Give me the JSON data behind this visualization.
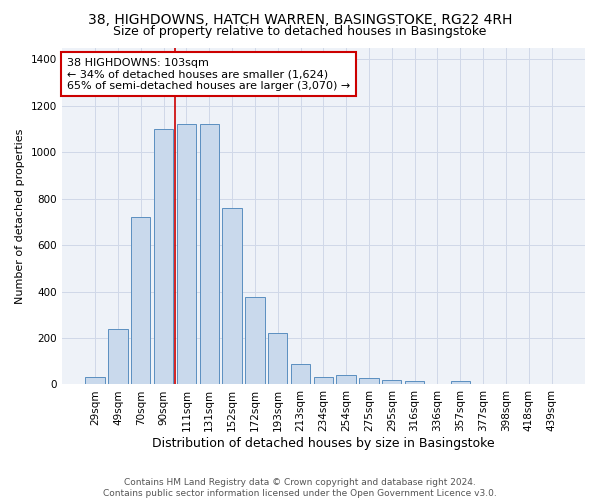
{
  "title_line1": "38, HIGHDOWNS, HATCH WARREN, BASINGSTOKE, RG22 4RH",
  "title_line2": "Size of property relative to detached houses in Basingstoke",
  "xlabel": "Distribution of detached houses by size in Basingstoke",
  "ylabel": "Number of detached properties",
  "categories": [
    "29sqm",
    "49sqm",
    "70sqm",
    "90sqm",
    "111sqm",
    "131sqm",
    "152sqm",
    "172sqm",
    "193sqm",
    "213sqm",
    "234sqm",
    "254sqm",
    "275sqm",
    "295sqm",
    "316sqm",
    "336sqm",
    "357sqm",
    "377sqm",
    "398sqm",
    "418sqm",
    "439sqm"
  ],
  "values": [
    30,
    240,
    720,
    1100,
    1120,
    1120,
    760,
    375,
    220,
    90,
    30,
    40,
    28,
    20,
    15,
    0,
    15,
    0,
    0,
    0,
    0
  ],
  "bar_color": "#c9d9ec",
  "bar_edge_color": "#5a8fc0",
  "vline_color": "#cc0000",
  "vline_x_index": 4,
  "annotation_text": "38 HIGHDOWNS: 103sqm\n← 34% of detached houses are smaller (1,624)\n65% of semi-detached houses are larger (3,070) →",
  "annotation_box_color": "#ffffff",
  "annotation_box_edge_color": "#cc0000",
  "ylim": [
    0,
    1450
  ],
  "yticks": [
    0,
    200,
    400,
    600,
    800,
    1000,
    1200,
    1400
  ],
  "grid_color": "#d0d8e8",
  "background_color": "#eef2f8",
  "footnote": "Contains HM Land Registry data © Crown copyright and database right 2024.\nContains public sector information licensed under the Open Government Licence v3.0.",
  "title_fontsize": 10,
  "subtitle_fontsize": 9,
  "xlabel_fontsize": 9,
  "ylabel_fontsize": 8,
  "tick_fontsize": 7.5,
  "annotation_fontsize": 8,
  "footnote_fontsize": 6.5
}
